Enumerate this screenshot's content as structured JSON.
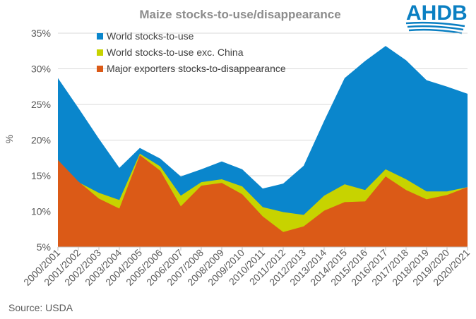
{
  "chart_data": {
    "type": "area",
    "title": "Maize stocks-to-use/disappearance",
    "ylabel": "%",
    "xlabel": "",
    "ylim": [
      5,
      35
    ],
    "yticks": [
      "5%",
      "10%",
      "15%",
      "20%",
      "25%",
      "30%",
      "35%"
    ],
    "ytick_values": [
      5,
      10,
      15,
      20,
      25,
      30,
      35
    ],
    "grid": "horizontal",
    "legend_position": "top-left",
    "categories": [
      "2000/2001",
      "2001/2002",
      "2002/2003",
      "2003/2004",
      "2004/2005",
      "2005/2006",
      "2006/2007",
      "2007/2008",
      "2008/2009",
      "2009/2010",
      "2010/2011",
      "2011/2012",
      "2012/2013",
      "2013/2014",
      "2014/2015",
      "2015/2016",
      "2016/2017",
      "2017/2018",
      "2018/2019",
      "2019/2020",
      "2020/2021"
    ],
    "series": [
      {
        "name": "World stocks-to-use",
        "color": "#0a86cc",
        "values": [
          28.7,
          24.5,
          20.2,
          16.1,
          18.9,
          17.4,
          14.9,
          15.9,
          17.0,
          15.9,
          13.2,
          13.9,
          16.4,
          22.7,
          28.7,
          31.1,
          33.2,
          31.2,
          28.4,
          27.5,
          26.5
        ]
      },
      {
        "name": "World stocks-to-use exc. China",
        "color": "#c7d300",
        "values": [
          17.2,
          14.1,
          12.6,
          11.6,
          18.1,
          16.3,
          12.2,
          14.1,
          14.5,
          13.5,
          10.6,
          9.9,
          9.5,
          12.2,
          13.8,
          13.0,
          15.9,
          14.5,
          12.8,
          12.8,
          13.4
        ]
      },
      {
        "name": "Major exporters stocks-to-disappearance",
        "color": "#db5a17",
        "values": [
          17.2,
          14.2,
          11.8,
          10.4,
          17.9,
          15.7,
          10.7,
          13.6,
          14.0,
          12.4,
          9.3,
          7.1,
          7.9,
          10.1,
          11.3,
          11.4,
          14.9,
          13.0,
          11.7,
          12.3,
          13.4
        ]
      }
    ],
    "source": "Source: USDA"
  },
  "logo": {
    "text": "AHDB",
    "color": "#0a7fc2"
  }
}
